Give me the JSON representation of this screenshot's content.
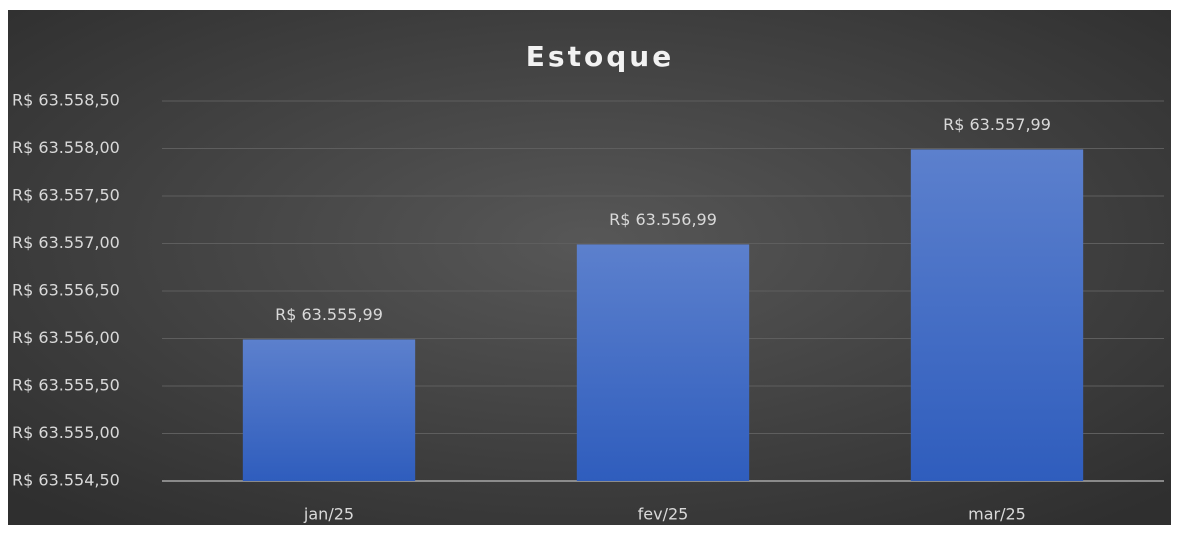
{
  "chart_data": {
    "type": "bar",
    "title": "Estoque",
    "categories": [
      "jan/25",
      "fev/25",
      "mar/25"
    ],
    "values": [
      63555.99,
      63556.99,
      63557.99
    ],
    "value_labels": [
      "R$ 63.555,99",
      "R$ 63.556,99",
      "R$ 63.557,99"
    ],
    "color": "#4472c4",
    "ylim": [
      63554.5,
      63558.5
    ],
    "yticks": [
      {
        "value": 63554.5,
        "label": "R$ 63.554,50"
      },
      {
        "value": 63555,
        "label": "R$ 63.555,00"
      },
      {
        "value": 63555.5,
        "label": "R$ 63.555,50"
      },
      {
        "value": 63556,
        "label": "R$ 63.556,00"
      },
      {
        "value": 63556.5,
        "label": "R$ 63.556,50"
      },
      {
        "value": 63557,
        "label": "R$ 63.557,00"
      },
      {
        "value": 63557.5,
        "label": "R$ 63.557,50"
      },
      {
        "value": 63558,
        "label": "R$ 63.558,00"
      },
      {
        "value": 63558.5,
        "label": "R$ 63.558,50"
      }
    ],
    "grid": true
  }
}
